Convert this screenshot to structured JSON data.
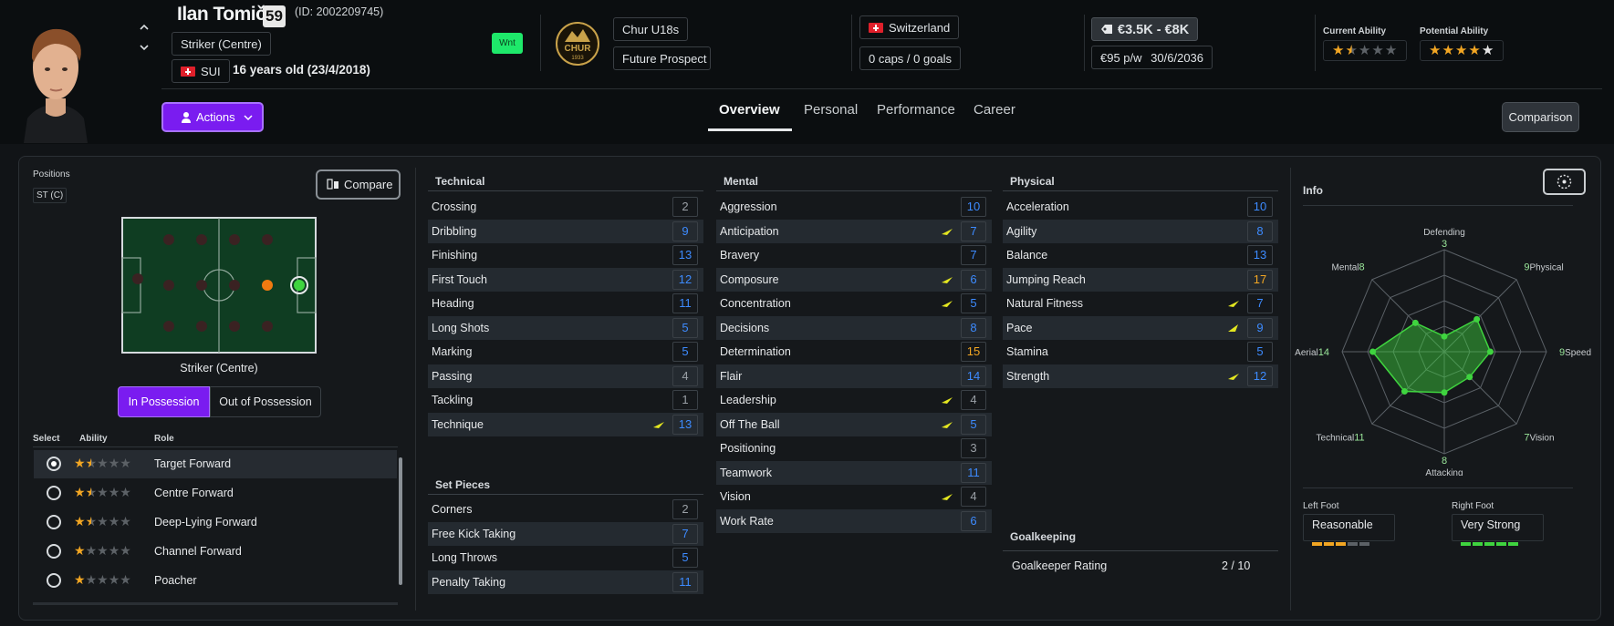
{
  "header": {
    "player_name": "Ilan Tomič",
    "overall": "59",
    "player_id": "(ID: 2002209745)",
    "position": "Striker (Centre)",
    "nation_code": "SUI",
    "age_text": "16 years old (23/4/2018)",
    "wnt_badge": "Wnt",
    "club_badge_text": "CHUR",
    "club_badge_year": "1933",
    "team": "Chur U18s",
    "status": "Future Prospect",
    "nation": "Switzerland",
    "caps": "0 caps / 0 goals",
    "value": "€3.5K - €8K",
    "wage": "€95 p/w",
    "contract_end": "30/6/2036",
    "current_ability_label": "Current Ability",
    "potential_ability_label": "Potential Ability",
    "current_ability_stars": 1.5,
    "potential_ability_stars": 4.5,
    "actions_label": "Actions",
    "comparison_label": "Comparison",
    "tabs": [
      "Overview",
      "Personal",
      "Performance",
      "Career"
    ],
    "active_tab": "Overview"
  },
  "positions": {
    "title": "Positions",
    "badge": "ST (C)",
    "compare_label": "Compare",
    "pitch_caption": "Striker (Centre)",
    "in_possession": "In Possession",
    "out_of_possession": "Out of Possession",
    "col_select": "Select",
    "col_ability": "Ability",
    "col_role": "Role",
    "roles": [
      {
        "name": "Target Forward",
        "stars": 1.5,
        "selected": true
      },
      {
        "name": "Centre Forward",
        "stars": 1.5,
        "selected": false
      },
      {
        "name": "Deep-Lying Forward",
        "stars": 1.5,
        "selected": false
      },
      {
        "name": "Channel Forward",
        "stars": 1,
        "selected": false
      },
      {
        "name": "Poacher",
        "stars": 1,
        "selected": false
      }
    ]
  },
  "technical": {
    "title": "Technical",
    "items": [
      {
        "name": "Crossing",
        "value": "2"
      },
      {
        "name": "Dribbling",
        "value": "9"
      },
      {
        "name": "Finishing",
        "value": "13"
      },
      {
        "name": "First Touch",
        "value": "12"
      },
      {
        "name": "Heading",
        "value": "11"
      },
      {
        "name": "Long Shots",
        "value": "5"
      },
      {
        "name": "Marking",
        "value": "5"
      },
      {
        "name": "Passing",
        "value": "4"
      },
      {
        "name": "Tackling",
        "value": "1"
      },
      {
        "name": "Technique",
        "value": "13",
        "trend": "up"
      }
    ]
  },
  "set_pieces": {
    "title": "Set Pieces",
    "items": [
      {
        "name": "Corners",
        "value": "2"
      },
      {
        "name": "Free Kick Taking",
        "value": "7"
      },
      {
        "name": "Long Throws",
        "value": "5"
      },
      {
        "name": "Penalty Taking",
        "value": "11"
      }
    ]
  },
  "mental": {
    "title": "Mental",
    "items": [
      {
        "name": "Aggression",
        "value": "10"
      },
      {
        "name": "Anticipation",
        "value": "7",
        "trend": "up"
      },
      {
        "name": "Bravery",
        "value": "7"
      },
      {
        "name": "Composure",
        "value": "6",
        "trend": "up"
      },
      {
        "name": "Concentration",
        "value": "5",
        "trend": "up"
      },
      {
        "name": "Decisions",
        "value": "8"
      },
      {
        "name": "Determination",
        "value": "15"
      },
      {
        "name": "Flair",
        "value": "14"
      },
      {
        "name": "Leadership",
        "value": "4",
        "trend": "up"
      },
      {
        "name": "Off The Ball",
        "value": "5",
        "trend": "up"
      },
      {
        "name": "Positioning",
        "value": "3"
      },
      {
        "name": "Teamwork",
        "value": "11"
      },
      {
        "name": "Vision",
        "value": "4",
        "trend": "up"
      },
      {
        "name": "Work Rate",
        "value": "6"
      }
    ]
  },
  "physical": {
    "title": "Physical",
    "items": [
      {
        "name": "Acceleration",
        "value": "10"
      },
      {
        "name": "Agility",
        "value": "8"
      },
      {
        "name": "Balance",
        "value": "13"
      },
      {
        "name": "Jumping Reach",
        "value": "17"
      },
      {
        "name": "Natural Fitness",
        "value": "7",
        "trend": "up"
      },
      {
        "name": "Pace",
        "value": "9",
        "trend": "strong-up"
      },
      {
        "name": "Stamina",
        "value": "5"
      },
      {
        "name": "Strength",
        "value": "12",
        "trend": "up"
      }
    ]
  },
  "goalkeeping": {
    "title": "Goalkeeping",
    "rating_label": "Goalkeeper Rating",
    "rating_value": "2 / 10"
  },
  "info": {
    "title": "Info",
    "radar": [
      {
        "label": "Defending",
        "value": 3
      },
      {
        "label": "Physical",
        "value": 9
      },
      {
        "label": "Speed",
        "value": 9
      },
      {
        "label": "Vision",
        "value": 7
      },
      {
        "label": "Attacking",
        "value": 8
      },
      {
        "label": "Technical",
        "value": 11
      },
      {
        "label": "Aerial",
        "value": 14
      },
      {
        "label": "Mental",
        "value": 8
      }
    ],
    "radar_max": 20,
    "left_foot_label": "Left Foot",
    "left_foot_value": "Reasonable",
    "left_foot_level": 3,
    "right_foot_label": "Right Foot",
    "right_foot_value": "Very Strong",
    "right_foot_level": 5
  },
  "colors": {
    "accent": "#7a1cf0",
    "value_blue": "#3d8bff",
    "value_orange": "#f2a623",
    "star": "#f2a623",
    "radar_green": "#3fd43f",
    "trend_yellow": "#e3e620"
  }
}
